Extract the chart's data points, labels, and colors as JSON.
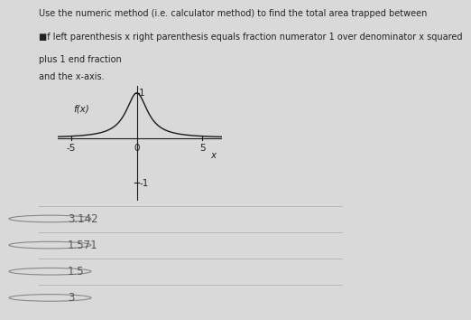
{
  "title_lines": [
    "Use the numeric method (i.e. calculator method) to find the total area trapped between",
    "f left parenthesis x right parenthesis equals fraction numerator 1 over denominator x squared",
    "plus 1 end fraction",
    "and the x-axis."
  ],
  "choices": [
    "3.142",
    "1.571",
    "1.5",
    "3"
  ],
  "xlim": [
    -6,
    6.5
  ],
  "ylim": [
    -1.4,
    1.15
  ],
  "xtick_vals": [
    -5,
    0,
    5
  ],
  "xtick_labels": [
    "-5",
    "0",
    "5"
  ],
  "ytick_neg1_label": "-1",
  "ytick_pos1_label": "1",
  "xlabel": "x",
  "ylabel": "f(x)",
  "bg_color": "#d9d9d9",
  "plot_bg_color": "#d9d9d9",
  "curve_color": "#1a1a1a",
  "axis_color": "#1a1a1a",
  "text_color": "#222222",
  "choice_text_color": "#555555",
  "title_fontsize": 7.0,
  "choice_fontsize": 8.5,
  "tick_fontsize": 7.5,
  "label_fontsize": 7.5
}
